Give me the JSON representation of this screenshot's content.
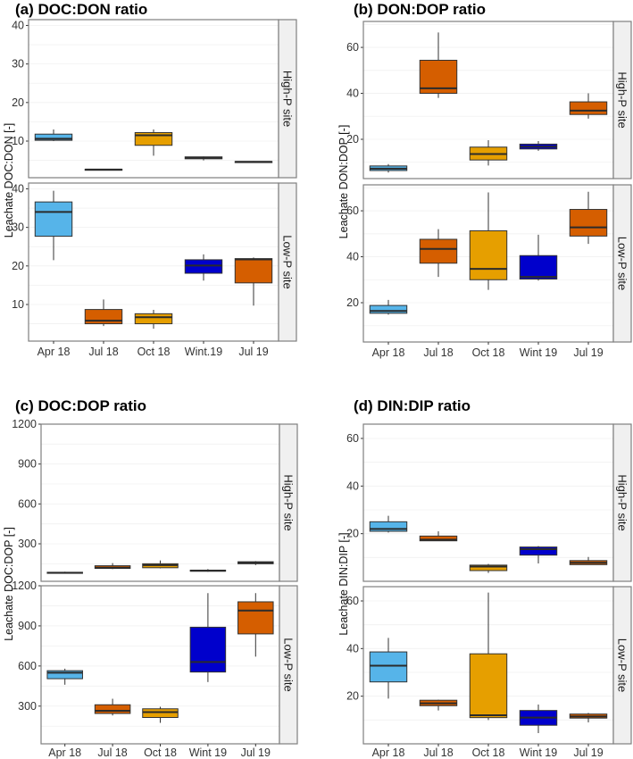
{
  "chart_data": [
    {
      "type": "box",
      "title": "(a) DOC:DON ratio",
      "ylabel": "Leachate DOC:DON [-]",
      "xlabel": "",
      "categories": [
        "Apr 18",
        "Jul 18",
        "Oct 18",
        "Wint.19",
        "Jul 19"
      ],
      "colors": [
        "#56B4E9",
        "#D55E00",
        "#E69F00",
        "#0000CC",
        "#D55E00"
      ],
      "facets": [
        {
          "label": "High-P site",
          "ylim": [
            0.5,
            41.5
          ],
          "yticks": [
            10,
            20,
            30,
            40
          ],
          "boxes": [
            {
              "min": 10.0,
              "q1": 10.2,
              "median": 10.6,
              "q3": 11.8,
              "max": 13.0
            },
            {
              "min": 2.6,
              "q1": 2.6,
              "median": 2.6,
              "q3": 2.7,
              "max": 2.7
            },
            {
              "min": 6.2,
              "q1": 8.9,
              "median": 11.5,
              "q3": 12.2,
              "max": 13.0
            },
            {
              "min": 5.0,
              "q1": 5.4,
              "median": 5.7,
              "q3": 5.9,
              "max": 6.0
            },
            {
              "min": 4.4,
              "q1": 4.5,
              "median": 4.6,
              "q3": 4.7,
              "max": 4.8
            }
          ]
        },
        {
          "label": "Low-P site",
          "ylim": [
            0.5,
            41.5
          ],
          "yticks": [
            10,
            20,
            30,
            40
          ],
          "boxes": [
            {
              "min": 21.5,
              "q1": 27.7,
              "median": 34.0,
              "q3": 36.6,
              "max": 39.5
            },
            {
              "min": 4.4,
              "q1": 5.0,
              "median": 5.8,
              "q3": 8.7,
              "max": 11.3
            },
            {
              "min": 3.7,
              "q1": 5.0,
              "median": 6.7,
              "q3": 7.6,
              "max": 8.6
            },
            {
              "min": 16.2,
              "q1": 18.1,
              "median": 20.1,
              "q3": 21.6,
              "max": 23.0
            },
            {
              "min": 9.7,
              "q1": 15.6,
              "median": 21.7,
              "q3": 21.9,
              "max": 22.2
            }
          ]
        }
      ]
    },
    {
      "type": "box",
      "title": "(b) DON:DOP ratio",
      "ylabel": "Leachate DON:DOP [-]",
      "xlabel": "",
      "categories": [
        "Apr 18",
        "Jul 18",
        "Oct 18",
        "Wint 19",
        "Jul 19"
      ],
      "colors": [
        "#56B4E9",
        "#D55E00",
        "#E69F00",
        "#0000CC",
        "#D55E00"
      ],
      "facets": [
        {
          "label": "High-P site",
          "ylim": [
            2.9,
            71.3
          ],
          "yticks": [
            20,
            40,
            60
          ],
          "boxes": [
            {
              "min": 5.5,
              "q1": 6.4,
              "median": 7.2,
              "q3": 8.4,
              "max": 9.2
            },
            {
              "min": 38.0,
              "q1": 40.0,
              "median": 42.2,
              "q3": 54.4,
              "max": 66.5
            },
            {
              "min": 8.6,
              "q1": 11.0,
              "median": 13.6,
              "q3": 16.6,
              "max": 19.6
            },
            {
              "min": 15.0,
              "q1": 15.8,
              "median": 16.8,
              "q3": 17.9,
              "max": 19.2
            },
            {
              "min": 29.0,
              "q1": 30.8,
              "median": 32.5,
              "q3": 36.3,
              "max": 40.0
            }
          ]
        },
        {
          "label": "Low-P site",
          "ylim": [
            2.9,
            71.3
          ],
          "yticks": [
            20,
            40,
            60
          ],
          "boxes": [
            {
              "min": 14.8,
              "q1": 15.4,
              "median": 16.4,
              "q3": 18.8,
              "max": 21.2
            },
            {
              "min": 31.2,
              "q1": 37.2,
              "median": 43.4,
              "q3": 47.6,
              "max": 52.0
            },
            {
              "min": 25.6,
              "q1": 30.0,
              "median": 34.7,
              "q3": 51.3,
              "max": 68.0
            },
            {
              "min": 29.6,
              "q1": 30.3,
              "median": 31.2,
              "q3": 40.5,
              "max": 49.6
            },
            {
              "min": 45.6,
              "q1": 49.0,
              "median": 52.8,
              "q3": 60.6,
              "max": 68.3
            }
          ]
        }
      ]
    },
    {
      "type": "box",
      "title": "(c) DOC:DOP ratio",
      "ylabel": "Leachate DOC:DOP [-]",
      "xlabel": "",
      "categories": [
        "Apr 18",
        "Jul 18",
        "Oct 18",
        "Wint 19",
        "Jul 19"
      ],
      "colors": [
        "#56B4E9",
        "#D55E00",
        "#E69F00",
        "#0000CC",
        "#D55E00"
      ],
      "facets": [
        {
          "label": "High-P site",
          "ylim": [
            18,
            1200
          ],
          "yticks": [
            300,
            600,
            900,
            1200
          ],
          "boxes": [
            {
              "min": 75,
              "q1": 78,
              "median": 82,
              "q3": 86,
              "max": 90
            },
            {
              "min": 110,
              "q1": 115,
              "median": 120,
              "q3": 135,
              "max": 155
            },
            {
              "min": 115,
              "q1": 120,
              "median": 140,
              "q3": 150,
              "max": 175
            },
            {
              "min": 90,
              "q1": 95,
              "median": 98,
              "q3": 102,
              "max": 110
            },
            {
              "min": 140,
              "q1": 150,
              "median": 158,
              "q3": 165,
              "max": 170
            }
          ]
        },
        {
          "label": "Low-P site",
          "ylim": [
            18,
            1200
          ],
          "yticks": [
            300,
            600,
            900,
            1200
          ],
          "boxes": [
            {
              "min": 460,
              "q1": 505,
              "median": 550,
              "q3": 565,
              "max": 580
            },
            {
              "min": 230,
              "q1": 245,
              "median": 265,
              "q3": 310,
              "max": 355
            },
            {
              "min": 175,
              "q1": 215,
              "median": 255,
              "q3": 280,
              "max": 295
            },
            {
              "min": 480,
              "q1": 555,
              "median": 630,
              "q3": 890,
              "max": 1145
            },
            {
              "min": 670,
              "q1": 840,
              "median": 1015,
              "q3": 1080,
              "max": 1145
            }
          ]
        }
      ]
    },
    {
      "type": "box",
      "title": "(d) DIN:DIP ratio",
      "ylabel": "Leachate DIN:DIP [-]",
      "xlabel": "",
      "categories": [
        "Apr 18",
        "Jul 18",
        "Oct 18",
        "Wint 19",
        "Jul 19"
      ],
      "colors": [
        "#56B4E9",
        "#D55E00",
        "#E69F00",
        "#0000CC",
        "#D55E00"
      ],
      "facets": [
        {
          "label": "High-P site",
          "ylim": [
            0,
            66
          ],
          "yticks": [
            20,
            40,
            60
          ],
          "boxes": [
            {
              "min": 20.5,
              "q1": 21.0,
              "median": 22.0,
              "q3": 25.0,
              "max": 27.5
            },
            {
              "min": 17.0,
              "q1": 17.0,
              "median": 17.5,
              "q3": 19.0,
              "max": 21.0
            },
            {
              "min": 3.5,
              "q1": 4.5,
              "median": 6.2,
              "q3": 6.8,
              "max": 7.3
            },
            {
              "min": 7.5,
              "q1": 11.0,
              "median": 13.5,
              "q3": 14.4,
              "max": 14.8
            },
            {
              "min": 7.0,
              "q1": 7.0,
              "median": 7.8,
              "q3": 8.7,
              "max": 10.2
            }
          ]
        },
        {
          "label": "Low-P site",
          "ylim": [
            0,
            66
          ],
          "yticks": [
            20,
            40,
            60
          ],
          "boxes": [
            {
              "min": 19.0,
              "q1": 26.0,
              "median": 32.8,
              "q3": 38.6,
              "max": 44.5
            },
            {
              "min": 14.0,
              "q1": 16.0,
              "median": 17.0,
              "q3": 18.3,
              "max": 18.5
            },
            {
              "min": 10.0,
              "q1": 11.0,
              "median": 12.0,
              "q3": 37.8,
              "max": 63.5
            },
            {
              "min": 4.5,
              "q1": 7.8,
              "median": 11.0,
              "q3": 14.0,
              "max": 16.5
            },
            {
              "min": 9.0,
              "q1": 10.8,
              "median": 11.5,
              "q3": 12.5,
              "max": 13.0
            }
          ]
        }
      ]
    }
  ]
}
